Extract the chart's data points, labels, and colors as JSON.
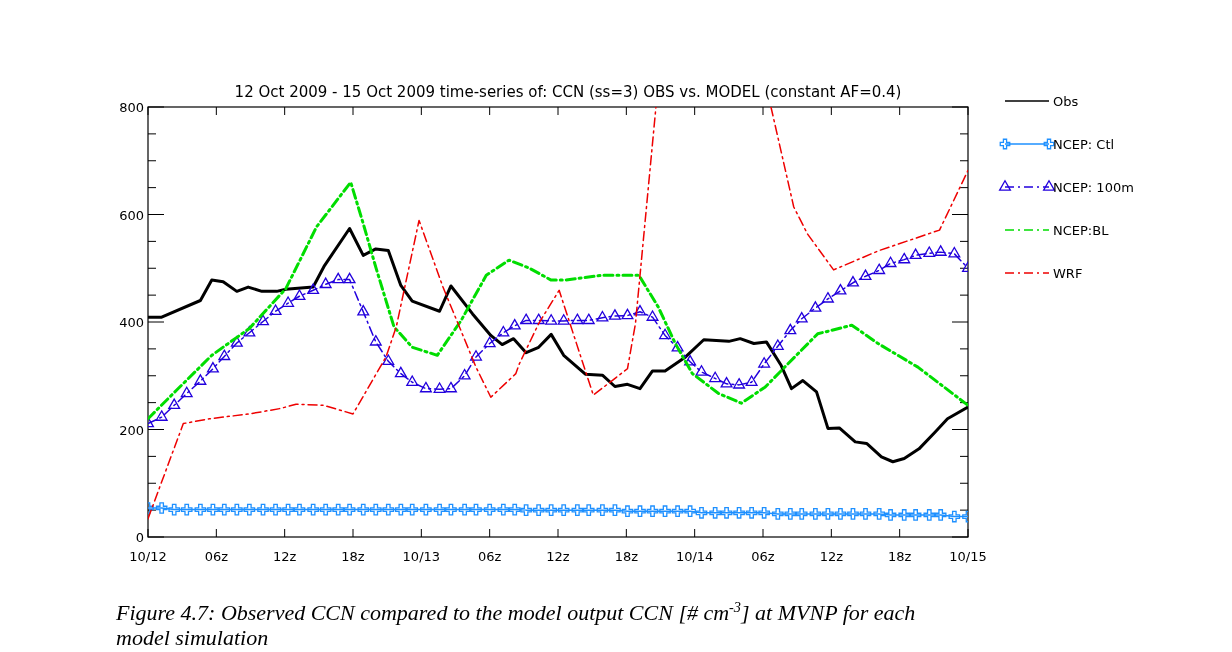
{
  "chart_data": {
    "type": "line",
    "title": "12 Oct 2009 - 15 Oct 2009 time-series of: CCN (ss=3) OBS vs. MODEL (constant AF=0.4)",
    "annotations": [
      "Figure 4.7: Observed CCN compared to the model output CCN [# cm$^{-3}$] at MVNP for each model simulation"
    ],
    "xlim": [
      "2009-10-12T00:00",
      "2009-10-15T00:00"
    ],
    "xticks": [
      {
        "value": "2009-10-12T00:00",
        "label": "10/12"
      },
      {
        "value": "2009-10-12T06:00",
        "label": "06z"
      },
      {
        "value": "2009-10-12T12:00",
        "label": "12z"
      },
      {
        "value": "2009-10-12T18:00",
        "label": "18z"
      },
      {
        "value": "2009-10-13T00:00",
        "label": "10/13"
      },
      {
        "value": "2009-10-13T06:00",
        "label": "06z"
      },
      {
        "value": "2009-10-13T12:00",
        "label": "12z"
      },
      {
        "value": "2009-10-13T18:00",
        "label": "18z"
      },
      {
        "value": "2009-10-14T00:00",
        "label": "10/14"
      },
      {
        "value": "2009-10-14T06:00",
        "label": "06z"
      },
      {
        "value": "2009-10-14T12:00",
        "label": "12z"
      },
      {
        "value": "2009-10-14T18:00",
        "label": "18z"
      },
      {
        "value": "2009-10-15T00:00",
        "label": "10/15"
      }
    ],
    "ylim": [
      0,
      800
    ],
    "yticks": [
      0,
      {
        "value": 50,
        "label": null
      },
      {
        "value": 100,
        "label": null
      },
      {
        "value": 150,
        "label": null
      },
      200,
      {
        "value": 250,
        "label": null
      },
      {
        "value": 300,
        "label": null
      },
      {
        "value": 350,
        "label": null
      },
      400,
      {
        "value": 450,
        "label": null
      },
      {
        "value": 500,
        "label": null
      },
      {
        "value": 550,
        "label": null
      },
      600,
      {
        "value": 650,
        "label": null
      },
      {
        "value": 700,
        "label": null
      },
      {
        "value": 750,
        "label": null
      },
      800
    ],
    "legend": "right",
    "grid": false,
    "x": [
      "2009-10-12T00:00",
      "2009-10-12T01:12",
      "2009-10-12T02:18",
      "2009-10-12T03:24",
      "2009-10-12T04:36",
      "2009-10-12T05:42",
      "2009-10-12T06:42",
      "2009-10-12T07:48",
      "2009-10-12T08:54",
      "2009-10-12T10:06",
      "2009-10-12T11:12",
      "2009-10-12T12:18",
      "2009-10-12T13:18",
      "2009-10-12T14:30",
      "2009-10-12T15:36",
      "2009-10-12T16:42",
      "2009-10-12T17:42",
      "2009-10-12T18:54",
      "2009-10-12T20:00",
      "2009-10-12T21:06",
      "2009-10-12T22:12",
      "2009-10-12T23:12",
      "2009-10-13T00:24",
      "2009-10-13T01:36",
      "2009-10-13T02:36",
      "2009-10-13T03:48",
      "2009-10-13T04:48",
      "2009-10-13T06:00",
      "2009-10-13T07:12",
      "2009-10-13T08:12",
      "2009-10-13T09:12",
      "2009-10-13T10:18",
      "2009-10-13T11:24",
      "2009-10-13T12:30",
      "2009-10-13T13:42",
      "2009-10-13T14:42",
      "2009-10-13T15:54",
      "2009-10-13T17:00",
      "2009-10-13T18:06",
      "2009-10-13T19:12",
      "2009-10-13T20:18",
      "2009-10-13T21:24",
      "2009-10-13T22:30",
      "2009-10-13T23:36",
      "2009-10-14T00:36",
      "2009-10-14T01:48",
      "2009-10-14T02:48",
      "2009-10-14T03:54",
      "2009-10-14T05:00",
      "2009-10-14T06:06",
      "2009-10-14T07:18",
      "2009-10-14T08:24",
      "2009-10-14T09:24",
      "2009-10-14T10:36",
      "2009-10-14T11:42",
      "2009-10-14T12:48",
      "2009-10-14T13:54",
      "2009-10-14T15:00",
      "2009-10-14T16:12",
      "2009-10-14T17:12",
      "2009-10-14T18:24",
      "2009-10-14T19:24",
      "2009-10-14T20:36",
      "2009-10-14T21:36",
      "2009-10-14T22:48",
      "2009-10-15T00:00"
    ],
    "series": [
      {
        "name": "Obs",
        "color": "#000000",
        "line_style": "solid",
        "marker": "none",
        "x": [
          "2009-10-12T00:00",
          "2009-10-12T01:12",
          "2009-10-12T04:36",
          "2009-10-12T05:36",
          "2009-10-12T06:36",
          "2009-10-12T07:48",
          "2009-10-12T08:48",
          "2009-10-12T10:00",
          "2009-10-12T11:18",
          "2009-10-12T12:06",
          "2009-10-12T14:30",
          "2009-10-12T15:30",
          "2009-10-12T17:42",
          "2009-10-12T18:54",
          "2009-10-12T20:00",
          "2009-10-12T21:06",
          "2009-10-12T22:12",
          "2009-10-12T23:12",
          "2009-10-13T01:36",
          "2009-10-13T02:36",
          "2009-10-13T04:30",
          "2009-10-13T06:06",
          "2009-10-13T07:06",
          "2009-10-13T08:06",
          "2009-10-13T09:12",
          "2009-10-13T10:18",
          "2009-10-13T11:24",
          "2009-10-13T12:30",
          "2009-10-13T14:24",
          "2009-10-13T15:54",
          "2009-10-13T17:00",
          "2009-10-13T18:06",
          "2009-10-13T19:12",
          "2009-10-13T20:18",
          "2009-10-13T21:24",
          "2009-10-13T23:12",
          "2009-10-14T00:48",
          "2009-10-14T03:00",
          "2009-10-14T04:00",
          "2009-10-14T05:12",
          "2009-10-14T06:18",
          "2009-10-14T07:36",
          "2009-10-14T08:30",
          "2009-10-14T09:30",
          "2009-10-14T10:42",
          "2009-10-14T11:42",
          "2009-10-14T12:42",
          "2009-10-14T14:06",
          "2009-10-14T15:06",
          "2009-10-14T16:24",
          "2009-10-14T17:24",
          "2009-10-14T18:24",
          "2009-10-14T19:42",
          "2009-10-14T21:06",
          "2009-10-14T22:12",
          "2009-10-15T00:00"
        ],
        "values": [
          409,
          409,
          440,
          478,
          475,
          457,
          465,
          457,
          457,
          461,
          465,
          505,
          574,
          524,
          536,
          533,
          468,
          439,
          420,
          467,
          415,
          375,
          358,
          369,
          343,
          353,
          377,
          338,
          303,
          301,
          280,
          284,
          276,
          309,
          309,
          335,
          367,
          364,
          369,
          360,
          363,
          319,
          276,
          291,
          270,
          202,
          203,
          177,
          174,
          149,
          140,
          146,
          164,
          195,
          220,
          242
        ]
      },
      {
        "name": "NCEP: Ctl",
        "color": "#1e90ff",
        "line_style": "solid",
        "marker": "cross",
        "values": [
          54,
          54,
          51,
          51,
          51,
          51,
          51,
          51,
          51,
          51,
          51,
          51,
          51,
          51,
          51,
          51,
          51,
          51,
          51,
          51,
          51,
          51,
          51,
          51,
          51,
          51,
          51,
          51,
          51,
          51,
          50,
          50,
          50,
          50,
          50,
          50,
          50,
          50,
          48,
          48,
          48,
          48,
          48,
          48,
          45,
          45,
          45,
          45,
          45,
          45,
          43,
          43,
          43,
          43,
          43,
          43,
          43,
          43,
          43,
          41,
          41,
          41,
          41,
          41,
          38,
          38
        ]
      },
      {
        "name": "NCEP: 100m",
        "color": "#2200dd",
        "line_style": "dashed",
        "marker": "triangle",
        "values": [
          211,
          223,
          245,
          267,
          290,
          313,
          336,
          361,
          380,
          401,
          420,
          435,
          448,
          459,
          470,
          479,
          479,
          419,
          363,
          327,
          304,
          288,
          276,
          275,
          276,
          300,
          335,
          360,
          380,
          393,
          403,
          403,
          402,
          402,
          403,
          403,
          408,
          411,
          412,
          419,
          409,
          375,
          352,
          326,
          307,
          295,
          285,
          283,
          288,
          322,
          355,
          384,
          406,
          426,
          443,
          458,
          473,
          485,
          496,
          509,
          516,
          524,
          528,
          530,
          527,
          500
        ]
      },
      {
        "name": "NCEP:BL",
        "color": "#00dd00",
        "line_style": "dashed",
        "marker": "none",
        "x": [
          "2009-10-12T00:00",
          "2009-10-12T02:30",
          "2009-10-12T05:36",
          "2009-10-12T08:54",
          "2009-10-12T12:06",
          "2009-10-12T14:48",
          "2009-10-12T17:48",
          "2009-10-12T18:54",
          "2009-10-12T20:00",
          "2009-10-12T21:36",
          "2009-10-12T23:12",
          "2009-10-13T01:24",
          "2009-10-13T03:30",
          "2009-10-13T05:42",
          "2009-10-13T07:42",
          "2009-10-13T09:30",
          "2009-10-13T11:24",
          "2009-10-13T12:36",
          "2009-10-13T15:54",
          "2009-10-13T19:06",
          "2009-10-13T20:48",
          "2009-10-13T22:18",
          "2009-10-13T23:48",
          "2009-10-14T02:06",
          "2009-10-14T04:06",
          "2009-10-14T06:12",
          "2009-10-14T07:54",
          "2009-10-14T10:48",
          "2009-10-14T13:48",
          "2009-10-14T16:06",
          "2009-10-14T19:36",
          "2009-10-15T00:00"
        ],
        "values": [
          220,
          273,
          338,
          388,
          462,
          577,
          660,
          583,
          502,
          391,
          353,
          338,
          403,
          487,
          515,
          500,
          478,
          478,
          487,
          487,
          428,
          360,
          304,
          267,
          249,
          279,
          316,
          378,
          394,
          360,
          316,
          245
        ]
      },
      {
        "name": "WRF",
        "color": "#ee0000",
        "line_style": "dashed",
        "marker": "none",
        "x": [
          "2009-10-12T00:00",
          "2009-10-12T03:06",
          "2009-10-12T05:24",
          "2009-10-12T08:54",
          "2009-10-12T11:36",
          "2009-10-12T13:00",
          "2009-10-12T15:24",
          "2009-10-12T18:00",
          "2009-10-12T20:54",
          "2009-10-12T21:48",
          "2009-10-12T23:48",
          "2009-10-13T01:54",
          "2009-10-13T04:48",
          "2009-10-13T06:06",
          "2009-10-13T08:18",
          "2009-10-13T08:36",
          "2009-10-13T10:18",
          "2009-10-13T12:06",
          "2009-10-13T15:06",
          "2009-10-13T18:06",
          "2009-10-13T18:48",
          "2009-10-13T20:36",
          "2009-10-14T02:00",
          "2009-10-14T06:42",
          "2009-10-14T08:42",
          "2009-10-14T09:54",
          "2009-10-14T12:12",
          "2009-10-14T16:12",
          "2009-10-14T21:30",
          "2009-10-15T00:00"
        ],
        "values": [
          34,
          211,
          220,
          229,
          239,
          247,
          245,
          229,
          335,
          391,
          589,
          465,
          316,
          260,
          304,
          322,
          397,
          459,
          264,
          313,
          397,
          800,
          null,
          800,
          614,
          564,
          497,
          533,
          571,
          682
        ]
      }
    ]
  }
}
